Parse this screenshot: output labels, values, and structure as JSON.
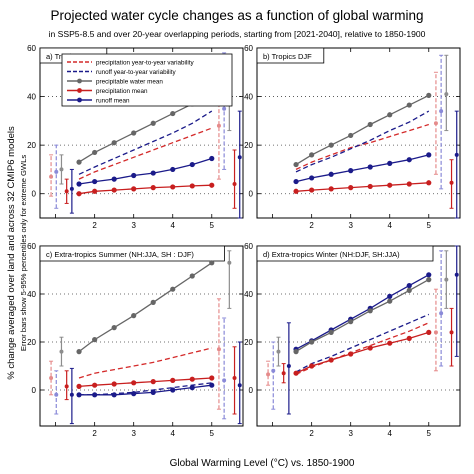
{
  "title": "Projected water cycle changes as a function of global warming",
  "subtitle": "in SSP5-8.5 and over 20-year overlapping periods, starting from [2021-2040], relative to 1850-1900",
  "ylabel": "% change averaged over land and across 32 CMIP6 models",
  "ylabel_note": "Error bars show 5-95% percentiles only for extreme GWLs",
  "xlabel": "Global Warming Level (°C) vs. 1850-1900",
  "colors": {
    "pr_var": "#d42a2a",
    "ro_var": "#1b1b8a",
    "pw_mean": "#666666",
    "pr_mean": "#c81f1f",
    "ro_mean": "#1b1b8a",
    "err_pr": "#e58b8b",
    "err_ro": "#8a8ad8",
    "err_pw": "#8d8d8d"
  },
  "legend": [
    {
      "key": "pr_var",
      "label": "precipitation year-to-year variability",
      "style": "dashed"
    },
    {
      "key": "ro_var",
      "label": "runoff year-to-year variability",
      "style": "dashed"
    },
    {
      "key": "pw_mean",
      "label": "precipitable water mean",
      "style": "solid"
    },
    {
      "key": "pr_mean",
      "label": "precipitation mean",
      "style": "solid"
    },
    {
      "key": "ro_mean",
      "label": "runoff mean",
      "style": "solid"
    }
  ],
  "chart_data": [
    {
      "type": "line",
      "panel_label": "a) Tropics JJA",
      "xlim": [
        0.6,
        5.8
      ],
      "ylim": [
        -10,
        60
      ],
      "x": [
        1.6,
        2.0,
        2.5,
        3.0,
        3.5,
        4.0,
        4.5,
        5.0
      ],
      "series": [
        {
          "key": "pw_mean",
          "name": "precipitable water mean",
          "values": [
            13,
            17,
            21,
            25,
            29,
            33,
            37,
            41.5
          ]
        },
        {
          "key": "pr_var",
          "name": "precipitation year-to-year variability",
          "values": [
            6,
            9,
            12,
            15,
            18,
            21,
            24,
            27
          ]
        },
        {
          "key": "ro_var",
          "name": "runoff year-to-year variability",
          "values": [
            8,
            11,
            14.5,
            18,
            21.5,
            25,
            29,
            34
          ]
        },
        {
          "key": "ro_mean",
          "name": "runoff mean",
          "values": [
            4,
            5,
            6,
            7.5,
            8.5,
            10,
            12,
            14.5
          ]
        },
        {
          "key": "pr_mean",
          "name": "precipitation mean",
          "values": [
            0,
            1,
            1.5,
            2,
            2.5,
            2.8,
            3.2,
            3.5
          ]
        }
      ],
      "error_bars_low_gwl": [
        {
          "key": "pr_var",
          "low": -1,
          "high": 16,
          "mid": 7
        },
        {
          "key": "ro_var",
          "low": -6,
          "high": 20,
          "mid": 9
        },
        {
          "key": "pw_mean",
          "low": 4,
          "high": 16,
          "mid": 10
        },
        {
          "key": "pr_mean",
          "low": -4,
          "high": 6,
          "mid": 1
        },
        {
          "key": "ro_mean",
          "low": -8,
          "high": 10,
          "mid": 2
        }
      ],
      "error_bars_high_gwl": [
        {
          "key": "pr_var",
          "low": 6,
          "high": 52,
          "mid": 28
        },
        {
          "key": "ro_var",
          "low": 10,
          "high": 58,
          "mid": 35
        },
        {
          "key": "pw_mean",
          "low": 26,
          "high": 57,
          "mid": 42
        },
        {
          "key": "pr_mean",
          "low": -6,
          "high": 18,
          "mid": 4
        },
        {
          "key": "ro_mean",
          "low": -10,
          "high": 34,
          "mid": 15
        }
      ]
    },
    {
      "type": "line",
      "panel_label": "b) Tropics DJF",
      "xlim": [
        0.6,
        5.8
      ],
      "ylim": [
        -10,
        60
      ],
      "x": [
        1.6,
        2.0,
        2.5,
        3.0,
        3.5,
        4.0,
        4.5,
        5.0
      ],
      "series": [
        {
          "key": "pw_mean",
          "name": "precipitable water mean",
          "values": [
            12,
            16,
            20,
            24,
            28.5,
            32.5,
            36.5,
            40.5
          ]
        },
        {
          "key": "pr_var",
          "name": "precipitation year-to-year variability",
          "values": [
            10,
            13,
            16,
            19,
            21,
            23.5,
            26,
            28.5
          ]
        },
        {
          "key": "ro_var",
          "name": "runoff year-to-year variability",
          "values": [
            9,
            12,
            15,
            18.5,
            22,
            26,
            29.5,
            34
          ]
        },
        {
          "key": "ro_mean",
          "name": "runoff mean",
          "values": [
            5,
            6.5,
            8,
            9.5,
            11,
            12.5,
            14,
            16
          ]
        },
        {
          "key": "pr_mean",
          "name": "precipitation mean",
          "values": [
            1,
            1.5,
            2,
            2.5,
            3,
            3.5,
            4,
            4.5
          ]
        }
      ],
      "error_bars_low_gwl": [],
      "error_bars_high_gwl": [
        {
          "key": "pr_var",
          "low": 8,
          "high": 50,
          "mid": 29
        },
        {
          "key": "ro_var",
          "low": 2,
          "high": 57,
          "mid": 34
        },
        {
          "key": "pw_mean",
          "low": 26,
          "high": 57,
          "mid": 41
        },
        {
          "key": "pr_mean",
          "low": -6,
          "high": 14,
          "mid": 4.5
        },
        {
          "key": "ro_mean",
          "low": -10,
          "high": 34,
          "mid": 16
        }
      ]
    },
    {
      "type": "line",
      "panel_label": "c) Extra-tropics Summer (NH:JJA, SH : DJF)",
      "xlim": [
        0.6,
        5.8
      ],
      "ylim": [
        -15,
        60
      ],
      "x": [
        1.6,
        2.0,
        2.5,
        3.0,
        3.5,
        4.0,
        4.5,
        5.0
      ],
      "series": [
        {
          "key": "pw_mean",
          "name": "precipitable water mean",
          "values": [
            16,
            21,
            26,
            31,
            36.5,
            42,
            47.5,
            53
          ]
        },
        {
          "key": "pr_var",
          "name": "precipitation year-to-year variability",
          "values": [
            5,
            7,
            8.5,
            10,
            11.5,
            13.5,
            15.5,
            17.5
          ]
        },
        {
          "key": "ro_var",
          "name": "runoff year-to-year variability",
          "values": [
            -2,
            -2,
            -1.5,
            -1,
            0,
            1,
            2,
            3
          ]
        },
        {
          "key": "ro_mean",
          "name": "runoff mean",
          "values": [
            -2,
            -2,
            -2,
            -1.5,
            -1,
            0,
            1,
            2
          ]
        },
        {
          "key": "pr_mean",
          "name": "precipitation mean",
          "values": [
            1.5,
            2,
            2.5,
            3,
            3.5,
            4,
            4.5,
            5
          ]
        }
      ],
      "error_bars_low_gwl": [
        {
          "key": "pr_var",
          "low": -2,
          "high": 12,
          "mid": 5
        },
        {
          "key": "ro_var",
          "low": -10,
          "high": 8,
          "mid": -2
        },
        {
          "key": "pw_mean",
          "low": 10,
          "high": 22,
          "mid": 16
        },
        {
          "key": "pr_mean",
          "low": -4,
          "high": 8,
          "mid": 1.5
        },
        {
          "key": "ro_mean",
          "low": -14,
          "high": 9,
          "mid": -2
        }
      ],
      "error_bars_high_gwl": [
        {
          "key": "pr_var",
          "low": -8,
          "high": 38,
          "mid": 17
        },
        {
          "key": "ro_var",
          "low": -12,
          "high": 30,
          "mid": 4
        },
        {
          "key": "pw_mean",
          "low": 34,
          "high": 58,
          "mid": 53
        },
        {
          "key": "pr_mean",
          "low": -10,
          "high": 18,
          "mid": 5
        },
        {
          "key": "ro_mean",
          "low": -14,
          "high": 20,
          "mid": 2
        }
      ]
    },
    {
      "type": "line",
      "panel_label": "d) Extra-tropics Winter (NH:DJF, SH:JJA)",
      "xlim": [
        0.6,
        5.8
      ],
      "ylim": [
        -15,
        60
      ],
      "x": [
        1.6,
        2.0,
        2.5,
        3.0,
        3.5,
        4.0,
        4.5,
        5.0
      ],
      "series": [
        {
          "key": "ro_mean",
          "name": "runoff mean",
          "values": [
            17,
            20.5,
            25,
            29.5,
            34,
            39,
            43.5,
            48
          ]
        },
        {
          "key": "pw_mean",
          "name": "precipitable water mean",
          "values": [
            16,
            20,
            24,
            28.5,
            33,
            37,
            41.5,
            46
          ]
        },
        {
          "key": "ro_var",
          "name": "runoff year-to-year variability",
          "values": [
            7.5,
            11,
            14,
            17.5,
            21,
            24.5,
            28,
            31.5
          ]
        },
        {
          "key": "pr_var",
          "name": "precipitation year-to-year variability",
          "values": [
            6.5,
            9.5,
            12.5,
            15.5,
            18.5,
            21.5,
            24.5,
            28
          ]
        },
        {
          "key": "pr_mean",
          "name": "precipitation mean",
          "values": [
            7,
            10,
            12.5,
            15,
            17.5,
            19.5,
            21.5,
            24
          ]
        }
      ],
      "error_bars_low_gwl": [
        {
          "key": "pr_var",
          "low": 2,
          "high": 12,
          "mid": 6.5
        },
        {
          "key": "ro_var",
          "low": -8,
          "high": 20,
          "mid": 8
        },
        {
          "key": "pw_mean",
          "low": 10,
          "high": 22,
          "mid": 16
        },
        {
          "key": "pr_mean",
          "low": 3,
          "high": 11,
          "mid": 7
        },
        {
          "key": "ro_mean",
          "low": -10,
          "high": 28,
          "mid": 10
        }
      ],
      "error_bars_high_gwl": [
        {
          "key": "pr_var",
          "low": 8,
          "high": 42,
          "mid": 24
        },
        {
          "key": "ro_var",
          "low": 10,
          "high": 58,
          "mid": 32
        },
        {
          "key": "pw_mean",
          "low": 34,
          "high": 58,
          "mid": 46
        },
        {
          "key": "pr_mean",
          "low": 10,
          "high": 34,
          "mid": 24
        },
        {
          "key": "ro_mean",
          "low": 14,
          "high": 60,
          "mid": 48
        }
      ]
    }
  ]
}
